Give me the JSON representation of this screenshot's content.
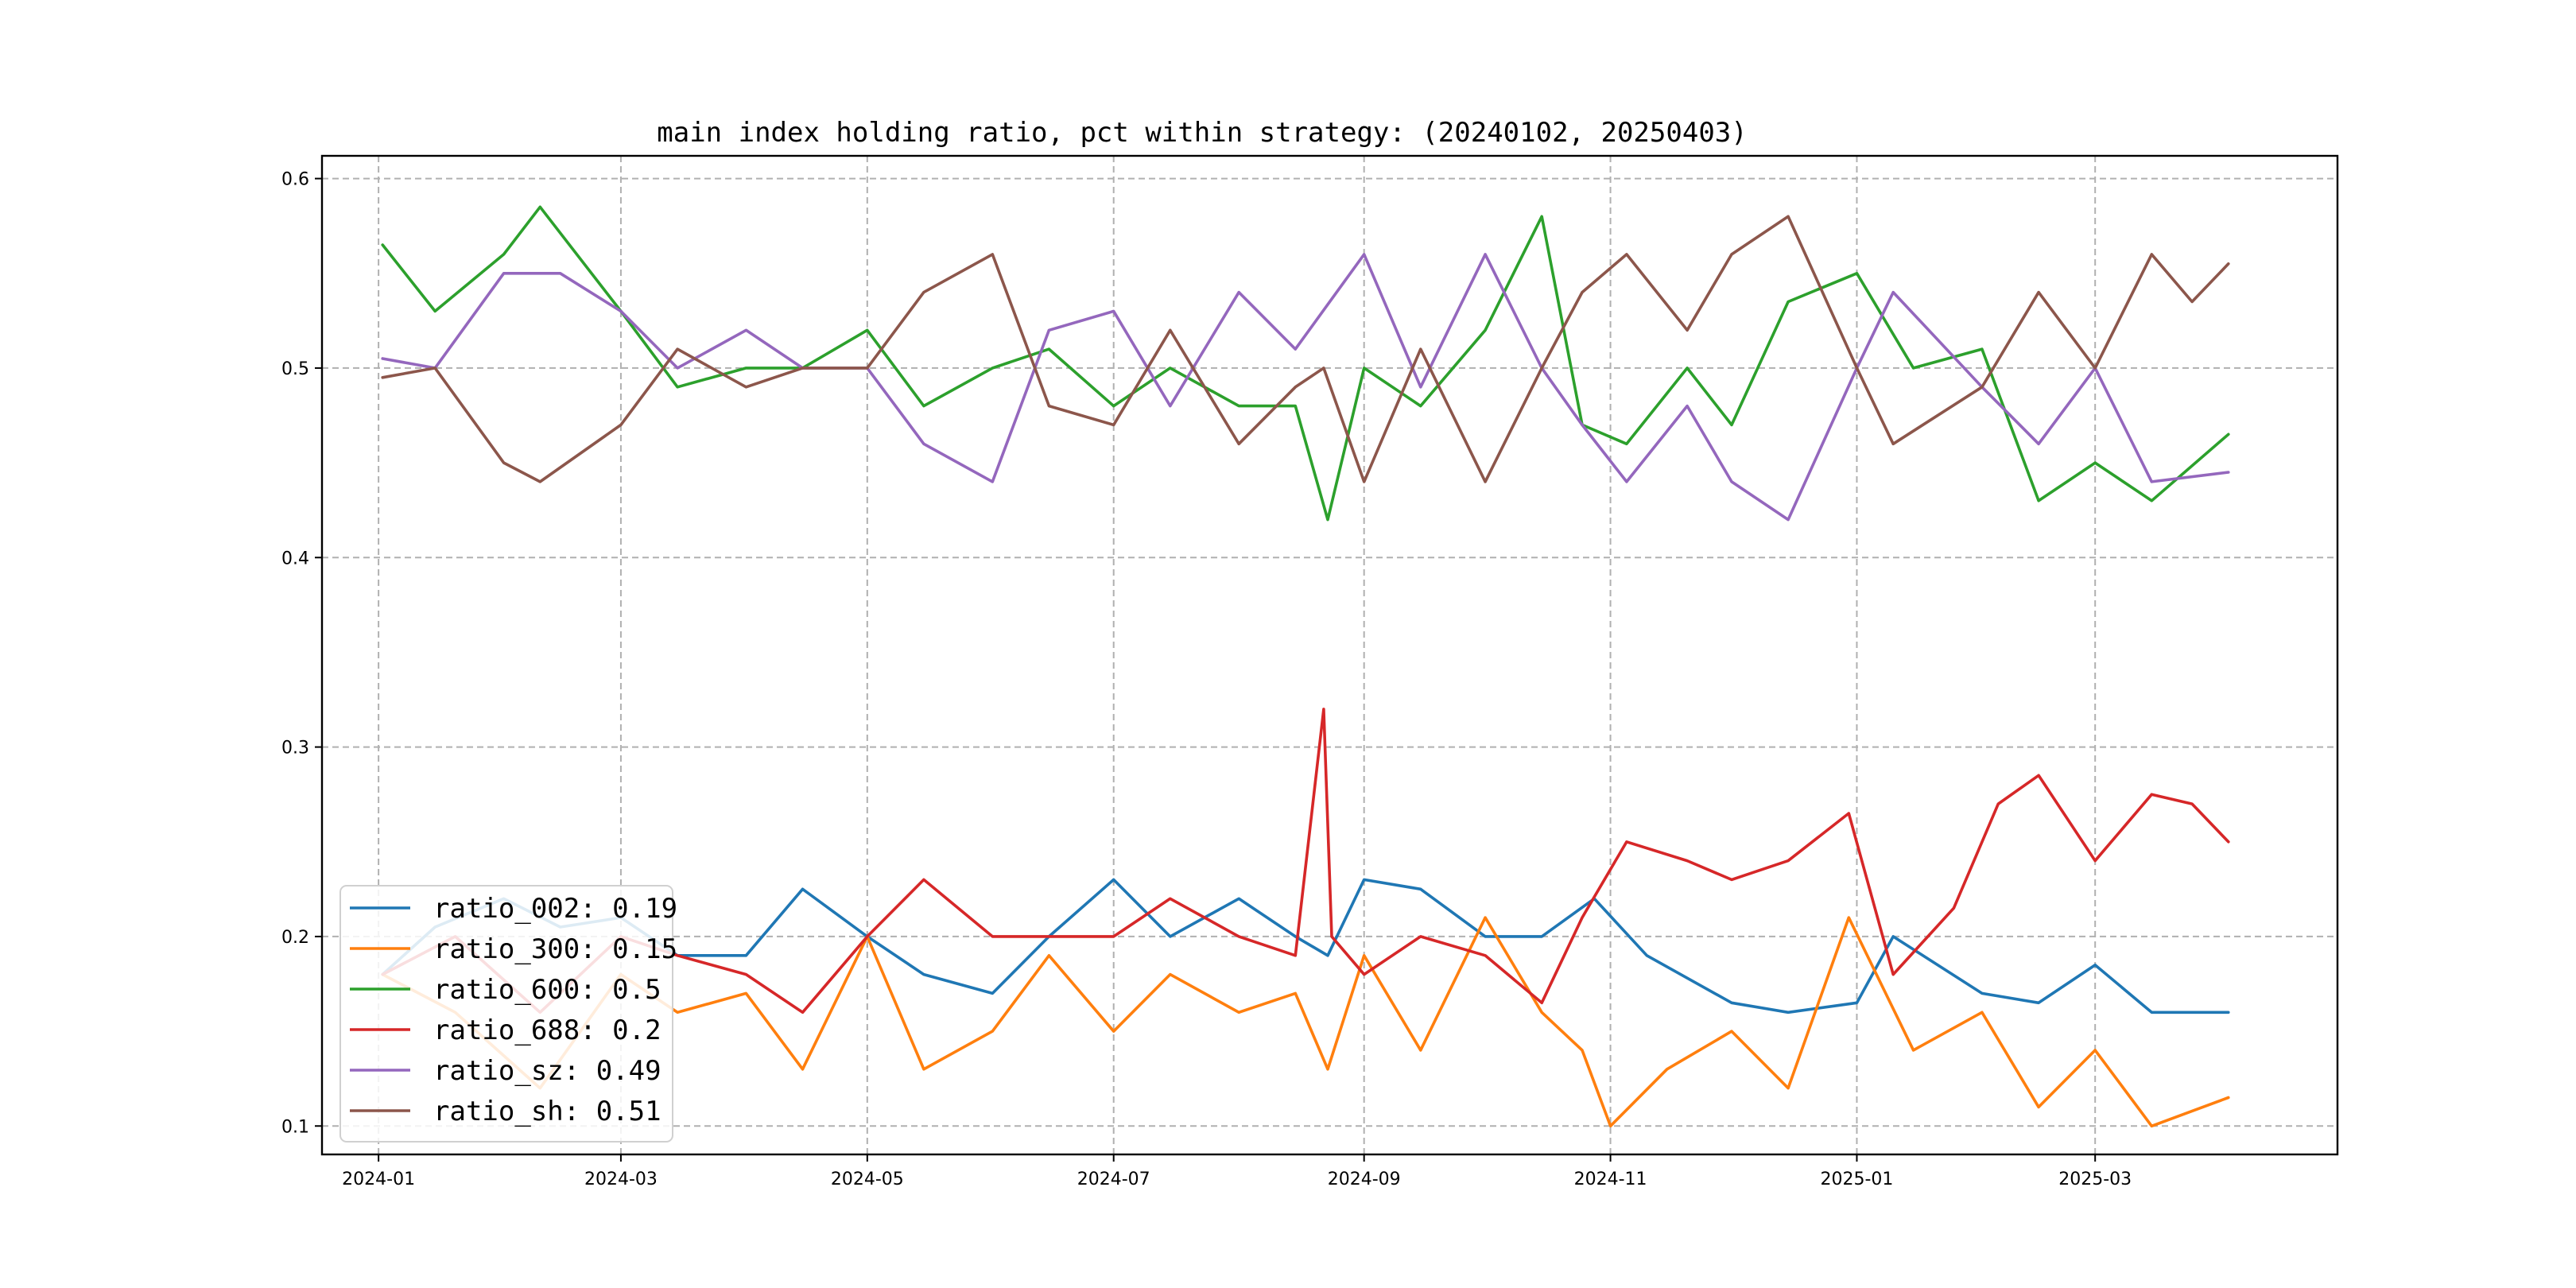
{
  "chart_data": {
    "type": "line",
    "title": "main index holding ratio, pct within strategy: (20240102, 20250403)",
    "xlabel": "",
    "ylabel": "",
    "x_range": [
      "2023-12-18",
      "2025-04-30"
    ],
    "ylim": [
      0.085,
      0.612
    ],
    "x_ticks": [
      "2024-01",
      "2024-03",
      "2024-05",
      "2024-07",
      "2024-09",
      "2024-11",
      "2025-01",
      "2025-03"
    ],
    "y_ticks": [
      0.1,
      0.2,
      0.3,
      0.4,
      0.5,
      0.6
    ],
    "y_tick_labels": [
      "0.1",
      "0.2",
      "0.3",
      "0.4",
      "0.5",
      "0.6"
    ],
    "grid": true,
    "legend_position": "lower-left",
    "series": [
      {
        "name": "ratio_002: 0.19",
        "color": "#1f77b4",
        "points": [
          [
            "2024-01-02",
            0.18
          ],
          [
            "2024-01-15",
            0.205
          ],
          [
            "2024-02-01",
            0.22
          ],
          [
            "2024-02-15",
            0.205
          ],
          [
            "2024-03-01",
            0.21
          ],
          [
            "2024-03-15",
            0.19
          ],
          [
            "2024-04-01",
            0.19
          ],
          [
            "2024-04-15",
            0.225
          ],
          [
            "2024-05-01",
            0.2
          ],
          [
            "2024-05-15",
            0.18
          ],
          [
            "2024-06-01",
            0.17
          ],
          [
            "2024-06-15",
            0.2
          ],
          [
            "2024-07-01",
            0.23
          ],
          [
            "2024-07-15",
            0.2
          ],
          [
            "2024-08-01",
            0.22
          ],
          [
            "2024-08-15",
            0.2
          ],
          [
            "2024-08-23",
            0.19
          ],
          [
            "2024-09-01",
            0.23
          ],
          [
            "2024-09-15",
            0.225
          ],
          [
            "2024-10-01",
            0.2
          ],
          [
            "2024-10-15",
            0.2
          ],
          [
            "2024-10-28",
            0.22
          ],
          [
            "2024-11-10",
            0.19
          ],
          [
            "2024-12-01",
            0.165
          ],
          [
            "2024-12-15",
            0.16
          ],
          [
            "2025-01-01",
            0.165
          ],
          [
            "2025-01-10",
            0.2
          ],
          [
            "2025-02-01",
            0.17
          ],
          [
            "2025-02-15",
            0.165
          ],
          [
            "2025-03-01",
            0.185
          ],
          [
            "2025-03-15",
            0.16
          ],
          [
            "2025-04-03",
            0.16
          ]
        ]
      },
      {
        "name": "ratio_300: 0.15",
        "color": "#ff7f0e",
        "points": [
          [
            "2024-01-02",
            0.18
          ],
          [
            "2024-01-20",
            0.16
          ],
          [
            "2024-02-10",
            0.12
          ],
          [
            "2024-03-01",
            0.18
          ],
          [
            "2024-03-15",
            0.16
          ],
          [
            "2024-04-01",
            0.17
          ],
          [
            "2024-04-15",
            0.13
          ],
          [
            "2024-05-01",
            0.2
          ],
          [
            "2024-05-15",
            0.13
          ],
          [
            "2024-06-01",
            0.15
          ],
          [
            "2024-06-15",
            0.19
          ],
          [
            "2024-07-01",
            0.15
          ],
          [
            "2024-07-15",
            0.18
          ],
          [
            "2024-08-01",
            0.16
          ],
          [
            "2024-08-15",
            0.17
          ],
          [
            "2024-08-23",
            0.13
          ],
          [
            "2024-09-01",
            0.19
          ],
          [
            "2024-09-15",
            0.14
          ],
          [
            "2024-10-01",
            0.21
          ],
          [
            "2024-10-15",
            0.16
          ],
          [
            "2024-10-25",
            0.14
          ],
          [
            "2024-11-01",
            0.1
          ],
          [
            "2024-11-15",
            0.13
          ],
          [
            "2024-12-01",
            0.15
          ],
          [
            "2024-12-15",
            0.12
          ],
          [
            "2024-12-30",
            0.21
          ],
          [
            "2025-01-15",
            0.14
          ],
          [
            "2025-02-01",
            0.16
          ],
          [
            "2025-02-15",
            0.11
          ],
          [
            "2025-03-01",
            0.14
          ],
          [
            "2025-03-15",
            0.1
          ],
          [
            "2025-04-03",
            0.115
          ]
        ]
      },
      {
        "name": "ratio_600: 0.5",
        "color": "#2ca02c",
        "points": [
          [
            "2024-01-02",
            0.565
          ],
          [
            "2024-01-15",
            0.53
          ],
          [
            "2024-02-01",
            0.56
          ],
          [
            "2024-02-10",
            0.585
          ],
          [
            "2024-03-01",
            0.53
          ],
          [
            "2024-03-15",
            0.49
          ],
          [
            "2024-04-01",
            0.5
          ],
          [
            "2024-04-15",
            0.5
          ],
          [
            "2024-05-01",
            0.52
          ],
          [
            "2024-05-15",
            0.48
          ],
          [
            "2024-06-01",
            0.5
          ],
          [
            "2024-06-15",
            0.51
          ],
          [
            "2024-07-01",
            0.48
          ],
          [
            "2024-07-15",
            0.5
          ],
          [
            "2024-08-01",
            0.48
          ],
          [
            "2024-08-15",
            0.48
          ],
          [
            "2024-08-23",
            0.42
          ],
          [
            "2024-09-01",
            0.5
          ],
          [
            "2024-09-15",
            0.48
          ],
          [
            "2024-10-01",
            0.52
          ],
          [
            "2024-10-15",
            0.58
          ],
          [
            "2024-10-25",
            0.47
          ],
          [
            "2024-11-05",
            0.46
          ],
          [
            "2024-11-20",
            0.5
          ],
          [
            "2024-12-01",
            0.47
          ],
          [
            "2024-12-15",
            0.535
          ],
          [
            "2025-01-01",
            0.55
          ],
          [
            "2025-01-15",
            0.5
          ],
          [
            "2025-02-01",
            0.51
          ],
          [
            "2025-02-15",
            0.43
          ],
          [
            "2025-03-01",
            0.45
          ],
          [
            "2025-03-15",
            0.43
          ],
          [
            "2025-04-03",
            0.465
          ]
        ]
      },
      {
        "name": "ratio_688: 0.2",
        "color": "#d62728",
        "points": [
          [
            "2024-01-02",
            0.18
          ],
          [
            "2024-01-20",
            0.2
          ],
          [
            "2024-02-10",
            0.16
          ],
          [
            "2024-03-01",
            0.2
          ],
          [
            "2024-03-15",
            0.19
          ],
          [
            "2024-04-01",
            0.18
          ],
          [
            "2024-04-15",
            0.16
          ],
          [
            "2024-05-01",
            0.2
          ],
          [
            "2024-05-15",
            0.23
          ],
          [
            "2024-06-01",
            0.2
          ],
          [
            "2024-06-15",
            0.2
          ],
          [
            "2024-07-01",
            0.2
          ],
          [
            "2024-07-15",
            0.22
          ],
          [
            "2024-08-01",
            0.2
          ],
          [
            "2024-08-15",
            0.19
          ],
          [
            "2024-08-22",
            0.32
          ],
          [
            "2024-08-24",
            0.2
          ],
          [
            "2024-09-01",
            0.18
          ],
          [
            "2024-09-15",
            0.2
          ],
          [
            "2024-10-01",
            0.19
          ],
          [
            "2024-10-15",
            0.165
          ],
          [
            "2024-10-25",
            0.21
          ],
          [
            "2024-11-05",
            0.25
          ],
          [
            "2024-11-20",
            0.24
          ],
          [
            "2024-12-01",
            0.23
          ],
          [
            "2024-12-15",
            0.24
          ],
          [
            "2024-12-30",
            0.265
          ],
          [
            "2025-01-10",
            0.18
          ],
          [
            "2025-01-25",
            0.215
          ],
          [
            "2025-02-05",
            0.27
          ],
          [
            "2025-02-15",
            0.285
          ],
          [
            "2025-03-01",
            0.24
          ],
          [
            "2025-03-15",
            0.275
          ],
          [
            "2025-03-25",
            0.27
          ],
          [
            "2025-04-03",
            0.25
          ]
        ]
      },
      {
        "name": "ratio_sz: 0.49",
        "color": "#9467bd",
        "points": [
          [
            "2024-01-02",
            0.505
          ],
          [
            "2024-01-15",
            0.5
          ],
          [
            "2024-02-01",
            0.55
          ],
          [
            "2024-02-15",
            0.55
          ],
          [
            "2024-03-01",
            0.53
          ],
          [
            "2024-03-15",
            0.5
          ],
          [
            "2024-04-01",
            0.52
          ],
          [
            "2024-04-15",
            0.5
          ],
          [
            "2024-05-01",
            0.5
          ],
          [
            "2024-05-15",
            0.46
          ],
          [
            "2024-06-01",
            0.44
          ],
          [
            "2024-06-15",
            0.52
          ],
          [
            "2024-07-01",
            0.53
          ],
          [
            "2024-07-15",
            0.48
          ],
          [
            "2024-08-01",
            0.54
          ],
          [
            "2024-08-15",
            0.51
          ],
          [
            "2024-09-01",
            0.56
          ],
          [
            "2024-09-15",
            0.49
          ],
          [
            "2024-10-01",
            0.56
          ],
          [
            "2024-10-15",
            0.5
          ],
          [
            "2024-10-25",
            0.47
          ],
          [
            "2024-11-05",
            0.44
          ],
          [
            "2024-11-20",
            0.48
          ],
          [
            "2024-12-01",
            0.44
          ],
          [
            "2024-12-15",
            0.42
          ],
          [
            "2025-01-01",
            0.5
          ],
          [
            "2025-01-10",
            0.54
          ],
          [
            "2025-02-01",
            0.49
          ],
          [
            "2025-02-15",
            0.46
          ],
          [
            "2025-03-01",
            0.5
          ],
          [
            "2025-03-15",
            0.44
          ],
          [
            "2025-04-03",
            0.445
          ]
        ]
      },
      {
        "name": "ratio_sh: 0.51",
        "color": "#8c564b",
        "points": [
          [
            "2024-01-02",
            0.495
          ],
          [
            "2024-01-15",
            0.5
          ],
          [
            "2024-02-01",
            0.45
          ],
          [
            "2024-02-10",
            0.44
          ],
          [
            "2024-03-01",
            0.47
          ],
          [
            "2024-03-15",
            0.51
          ],
          [
            "2024-04-01",
            0.49
          ],
          [
            "2024-04-15",
            0.5
          ],
          [
            "2024-05-01",
            0.5
          ],
          [
            "2024-05-15",
            0.54
          ],
          [
            "2024-06-01",
            0.56
          ],
          [
            "2024-06-15",
            0.48
          ],
          [
            "2024-07-01",
            0.47
          ],
          [
            "2024-07-15",
            0.52
          ],
          [
            "2024-08-01",
            0.46
          ],
          [
            "2024-08-15",
            0.49
          ],
          [
            "2024-08-22",
            0.5
          ],
          [
            "2024-09-01",
            0.44
          ],
          [
            "2024-09-15",
            0.51
          ],
          [
            "2024-10-01",
            0.44
          ],
          [
            "2024-10-15",
            0.5
          ],
          [
            "2024-10-25",
            0.54
          ],
          [
            "2024-11-05",
            0.56
          ],
          [
            "2024-11-20",
            0.52
          ],
          [
            "2024-12-01",
            0.56
          ],
          [
            "2024-12-15",
            0.58
          ],
          [
            "2025-01-01",
            0.5
          ],
          [
            "2025-01-10",
            0.46
          ],
          [
            "2025-02-01",
            0.49
          ],
          [
            "2025-02-15",
            0.54
          ],
          [
            "2025-03-01",
            0.5
          ],
          [
            "2025-03-15",
            0.56
          ],
          [
            "2025-03-25",
            0.535
          ],
          [
            "2025-04-03",
            0.555
          ]
        ]
      }
    ]
  }
}
